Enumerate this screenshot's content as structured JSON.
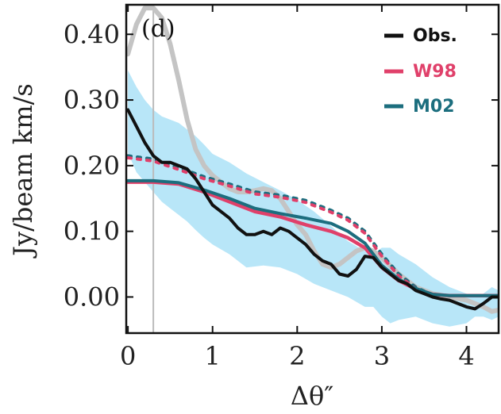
{
  "chart_data": {
    "type": "line",
    "panel_label": "(d)",
    "xlabel": "Δθ″",
    "ylabel": "Jy/beam km/s",
    "xlim": [
      -0.02,
      4.38
    ],
    "ylim": [
      -0.055,
      0.445
    ],
    "xticks": [
      0,
      1,
      2,
      3,
      4
    ],
    "yticks": [
      0.0,
      0.1,
      0.2,
      0.3,
      0.4
    ],
    "xtick_labels": [
      "0",
      "1",
      "2",
      "3",
      "4"
    ],
    "ytick_labels": [
      "0.00",
      "0.10",
      "0.20",
      "0.30",
      "0.40"
    ],
    "legend_position": "top-right",
    "beam_marker_x": 0.3,
    "colors": {
      "obs": "#111111",
      "w98": "#e0406a",
      "m02": "#1c6e7e",
      "band": "#b8e6f8",
      "gray": "#c4c4c4"
    },
    "series": [
      {
        "name": "Obs.",
        "color": "#111111",
        "x": [
          0.0,
          0.1,
          0.2,
          0.3,
          0.4,
          0.5,
          0.6,
          0.7,
          0.8,
          0.9,
          1.0,
          1.1,
          1.2,
          1.3,
          1.4,
          1.5,
          1.6,
          1.7,
          1.8,
          1.9,
          2.0,
          2.1,
          2.2,
          2.3,
          2.4,
          2.5,
          2.6,
          2.7,
          2.8,
          2.9,
          3.0,
          3.1,
          3.2,
          3.3,
          3.4,
          3.5,
          3.6,
          3.7,
          3.8,
          3.9,
          4.0,
          4.1,
          4.2,
          4.3,
          4.38
        ],
        "y": [
          0.285,
          0.26,
          0.235,
          0.215,
          0.205,
          0.205,
          0.2,
          0.195,
          0.18,
          0.16,
          0.14,
          0.13,
          0.12,
          0.105,
          0.095,
          0.095,
          0.1,
          0.095,
          0.105,
          0.1,
          0.09,
          0.08,
          0.065,
          0.055,
          0.05,
          0.035,
          0.032,
          0.042,
          0.062,
          0.06,
          0.045,
          0.035,
          0.025,
          0.02,
          0.01,
          0.005,
          0.0,
          -0.003,
          -0.005,
          -0.01,
          -0.015,
          -0.018,
          -0.01,
          0.0,
          0.0
        ]
      },
      {
        "name": "W98",
        "color": "#e0406a",
        "x": [
          0.0,
          0.3,
          0.6,
          0.9,
          1.2,
          1.5,
          1.8,
          2.1,
          2.4,
          2.6,
          2.8,
          2.9,
          3.0,
          3.2,
          3.4,
          3.6,
          3.8,
          4.0,
          4.2,
          4.38
        ],
        "y": [
          0.175,
          0.175,
          0.172,
          0.16,
          0.145,
          0.13,
          0.122,
          0.11,
          0.1,
          0.09,
          0.075,
          0.06,
          0.045,
          0.025,
          0.012,
          0.004,
          0.002,
          0.002,
          0.002,
          0.002
        ]
      },
      {
        "name": "M02",
        "color": "#1c6e7e",
        "x": [
          0.0,
          0.3,
          0.6,
          0.9,
          1.2,
          1.5,
          1.8,
          2.1,
          2.4,
          2.6,
          2.8,
          2.9,
          3.0,
          3.2,
          3.4,
          3.6,
          3.8,
          4.0,
          4.2,
          4.38
        ],
        "y": [
          0.177,
          0.177,
          0.174,
          0.163,
          0.15,
          0.135,
          0.127,
          0.12,
          0.112,
          0.1,
          0.082,
          0.065,
          0.048,
          0.027,
          0.013,
          0.004,
          0.002,
          0.002,
          0.002,
          0.002
        ]
      },
      {
        "role": "model-dotted",
        "color": "#1c6e7e",
        "x": [
          0.0,
          0.3,
          0.6,
          0.9,
          1.2,
          1.5,
          1.8,
          2.1,
          2.4,
          2.6,
          2.8,
          3.0,
          3.2,
          3.4,
          3.6
        ],
        "y": [
          0.215,
          0.21,
          0.197,
          0.183,
          0.172,
          0.16,
          0.155,
          0.147,
          0.132,
          0.12,
          0.1,
          0.065,
          0.035,
          0.015,
          0.003
        ]
      },
      {
        "role": "model-dotted",
        "color": "#e0406a",
        "x": [
          0.0,
          0.3,
          0.6,
          0.9,
          1.2,
          1.5,
          1.8,
          2.1,
          2.4,
          2.6,
          2.8,
          3.0,
          3.2,
          3.4,
          3.6
        ],
        "y": [
          0.212,
          0.207,
          0.194,
          0.18,
          0.169,
          0.157,
          0.152,
          0.144,
          0.129,
          0.117,
          0.097,
          0.062,
          0.032,
          0.013,
          0.002
        ]
      },
      {
        "role": "gray-profile",
        "color": "#c4c4c4",
        "x": [
          0.0,
          0.1,
          0.2,
          0.3,
          0.4,
          0.5,
          0.6,
          0.7,
          0.8,
          0.9,
          1.0,
          1.1,
          1.2,
          1.3,
          1.4,
          1.5,
          1.6,
          1.7,
          1.8,
          1.9,
          2.0,
          2.1,
          2.2,
          2.3,
          2.4,
          2.5,
          2.6,
          2.7,
          2.8,
          2.9,
          3.0,
          3.2,
          3.4,
          3.6,
          3.8,
          4.0,
          4.2,
          4.3,
          4.38
        ],
        "y": [
          0.37,
          0.415,
          0.44,
          0.44,
          0.425,
          0.385,
          0.33,
          0.27,
          0.225,
          0.2,
          0.185,
          0.175,
          0.165,
          0.16,
          0.16,
          0.162,
          0.165,
          0.162,
          0.15,
          0.13,
          0.11,
          0.095,
          0.07,
          0.05,
          0.045,
          0.05,
          0.06,
          0.07,
          0.075,
          0.07,
          0.06,
          0.035,
          0.015,
          0.005,
          0.0,
          -0.005,
          -0.015,
          -0.022,
          -0.02
        ]
      },
      {
        "role": "uncertainty-band",
        "color": "#b8e6f8",
        "x": [
          0.0,
          0.1,
          0.2,
          0.3,
          0.4,
          0.5,
          0.6,
          0.7,
          0.8,
          0.9,
          1.0,
          1.2,
          1.4,
          1.6,
          1.8,
          2.0,
          2.2,
          2.4,
          2.6,
          2.8,
          2.9,
          3.0,
          3.1,
          3.2,
          3.4,
          3.6,
          3.8,
          4.0,
          4.1,
          4.2,
          4.3,
          4.38
        ],
        "upper": [
          0.345,
          0.32,
          0.3,
          0.285,
          0.275,
          0.27,
          0.265,
          0.255,
          0.245,
          0.232,
          0.218,
          0.205,
          0.188,
          0.175,
          0.162,
          0.148,
          0.13,
          0.108,
          0.085,
          0.07,
          0.065,
          0.075,
          0.075,
          0.065,
          0.05,
          0.03,
          0.015,
          0.005,
          0.0,
          0.005,
          0.015,
          0.01
        ],
        "lower": [
          0.22,
          0.19,
          0.175,
          0.16,
          0.145,
          0.135,
          0.125,
          0.115,
          0.102,
          0.09,
          0.08,
          0.065,
          0.045,
          0.048,
          0.045,
          0.035,
          0.02,
          0.01,
          0.0,
          -0.015,
          -0.015,
          -0.03,
          -0.04,
          -0.035,
          -0.03,
          -0.04,
          -0.045,
          -0.04,
          -0.03,
          -0.03,
          -0.035,
          -0.03
        ]
      }
    ]
  }
}
